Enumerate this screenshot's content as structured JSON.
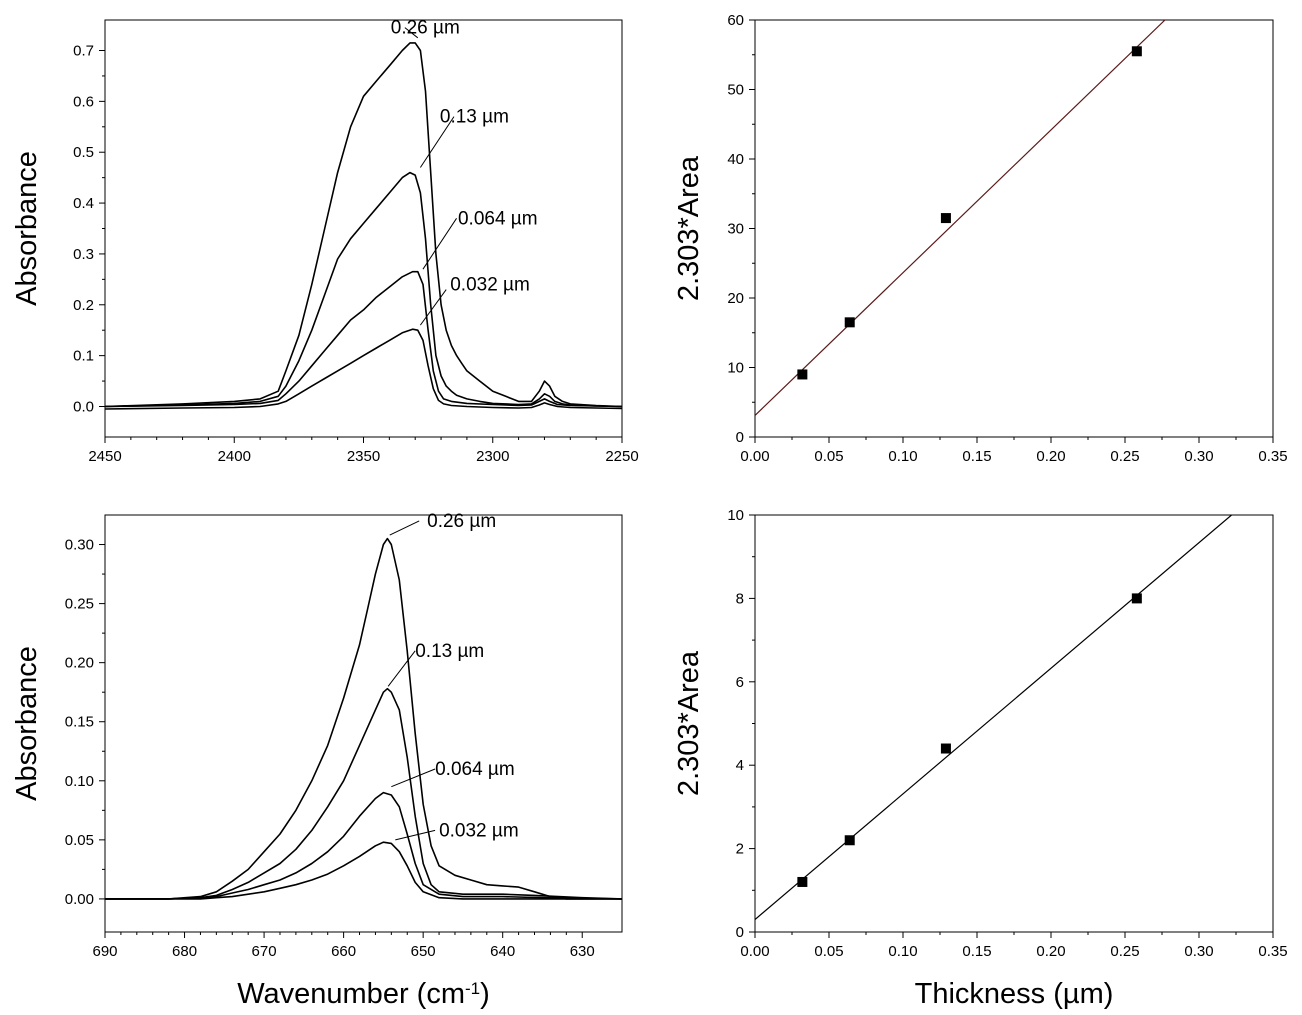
{
  "chart_data": [
    {
      "id": "A",
      "type": "line",
      "ylabel": "Absorbance",
      "xlim": [
        2450,
        2250
      ],
      "ylim": [
        -0.06,
        0.76
      ],
      "xticks": [
        2450,
        2400,
        2350,
        2300,
        2250
      ],
      "xtick_labels": [
        "2450",
        "2400",
        "2350",
        "2300",
        "2250"
      ],
      "yticks": [
        0.0,
        0.1,
        0.2,
        0.3,
        0.4,
        0.5,
        0.6,
        0.7
      ],
      "ytick_labels": [
        "0.0",
        "0.1",
        "0.2",
        "0.3",
        "0.4",
        "0.5",
        "0.6",
        "0.7"
      ],
      "series": [
        {
          "label": "0.26 µm",
          "x": [
            2450,
            2420,
            2400,
            2390,
            2383,
            2380,
            2375,
            2370,
            2365,
            2360,
            2355,
            2350,
            2345,
            2340,
            2335,
            2332,
            2330,
            2328,
            2326,
            2324,
            2322,
            2320,
            2318,
            2316,
            2314,
            2312,
            2310,
            2305,
            2300,
            2295,
            2290,
            2285,
            2282,
            2280,
            2278,
            2276,
            2273,
            2270,
            2260,
            2250
          ],
          "y": [
            0.0,
            0.005,
            0.01,
            0.015,
            0.03,
            0.07,
            0.14,
            0.24,
            0.35,
            0.46,
            0.55,
            0.61,
            0.64,
            0.67,
            0.7,
            0.715,
            0.715,
            0.7,
            0.62,
            0.46,
            0.3,
            0.2,
            0.15,
            0.12,
            0.1,
            0.085,
            0.07,
            0.05,
            0.03,
            0.02,
            0.01,
            0.01,
            0.03,
            0.05,
            0.04,
            0.02,
            0.01,
            0.005,
            0.002,
            0.0
          ]
        },
        {
          "label": "0.13 µm",
          "x": [
            2450,
            2420,
            2400,
            2390,
            2383,
            2380,
            2375,
            2370,
            2365,
            2360,
            2355,
            2350,
            2345,
            2340,
            2335,
            2332,
            2330,
            2328,
            2326,
            2324,
            2322,
            2320,
            2318,
            2316,
            2314,
            2310,
            2305,
            2300,
            2290,
            2285,
            2282,
            2280,
            2278,
            2276,
            2273,
            2270,
            2260,
            2250
          ],
          "y": [
            0.0,
            0.003,
            0.006,
            0.01,
            0.02,
            0.04,
            0.09,
            0.15,
            0.22,
            0.29,
            0.33,
            0.36,
            0.39,
            0.42,
            0.45,
            0.46,
            0.455,
            0.42,
            0.33,
            0.2,
            0.1,
            0.06,
            0.04,
            0.03,
            0.022,
            0.015,
            0.01,
            0.006,
            0.004,
            0.005,
            0.015,
            0.025,
            0.02,
            0.01,
            0.005,
            0.003,
            0.001,
            0.0
          ]
        },
        {
          "label": "0.064 µm",
          "x": [
            2450,
            2420,
            2400,
            2390,
            2383,
            2380,
            2375,
            2370,
            2365,
            2360,
            2355,
            2350,
            2345,
            2340,
            2335,
            2331,
            2329,
            2327,
            2325,
            2323,
            2321,
            2319,
            2316,
            2310,
            2300,
            2290,
            2285,
            2282,
            2280,
            2278,
            2275,
            2270,
            2260,
            2250
          ],
          "y": [
            0.0,
            0.002,
            0.004,
            0.006,
            0.012,
            0.025,
            0.05,
            0.08,
            0.11,
            0.14,
            0.17,
            0.19,
            0.215,
            0.235,
            0.255,
            0.265,
            0.265,
            0.24,
            0.15,
            0.07,
            0.03,
            0.015,
            0.01,
            0.006,
            0.004,
            0.002,
            0.003,
            0.01,
            0.015,
            0.01,
            0.004,
            0.002,
            0.001,
            0.0
          ]
        },
        {
          "label": "0.032 µm",
          "x": [
            2450,
            2420,
            2400,
            2390,
            2383,
            2380,
            2375,
            2370,
            2365,
            2360,
            2355,
            2350,
            2345,
            2340,
            2335,
            2331,
            2329,
            2327,
            2325,
            2323,
            2321,
            2319,
            2316,
            2310,
            2300,
            2290,
            2285,
            2282,
            2280,
            2278,
            2275,
            2270,
            2260,
            2250
          ],
          "y": [
            -0.005,
            -0.003,
            -0.002,
            0.0,
            0.005,
            0.01,
            0.025,
            0.04,
            0.055,
            0.07,
            0.085,
            0.1,
            0.115,
            0.13,
            0.145,
            0.152,
            0.15,
            0.13,
            0.08,
            0.035,
            0.012,
            0.005,
            0.002,
            0.0,
            -0.002,
            -0.003,
            -0.002,
            0.003,
            0.007,
            0.004,
            0.0,
            -0.002,
            -0.003,
            -0.004
          ]
        }
      ],
      "annotations": [
        {
          "text": "0.26 µm",
          "x": 2341,
          "y": 0.745,
          "lx1": 2329,
          "ly1": 0.725,
          "lx2": 2334,
          "ly2": 0.745
        },
        {
          "text": "0.13 µm",
          "x": 2322,
          "y": 0.57,
          "lx1": 2328,
          "ly1": 0.47,
          "lx2": 2315,
          "ly2": 0.57
        },
        {
          "text": "0.064 µm",
          "x": 2315,
          "y": 0.37,
          "lx1": 2327,
          "ly1": 0.27,
          "lx2": 2314,
          "ly2": 0.37
        },
        {
          "text": "0.032 µm",
          "x": 2318,
          "y": 0.24,
          "lx1": 2328,
          "ly1": 0.16,
          "lx2": 2318,
          "ly2": 0.23
        }
      ]
    },
    {
      "id": "B",
      "type": "line",
      "ylabel": "Absorbance",
      "xlabel": "Wavenumber (cm",
      "xlabel_sup": "-1",
      "xlabel_end": ")",
      "xlim": [
        690,
        625
      ],
      "ylim": [
        -0.028,
        0.325
      ],
      "xticks": [
        690,
        680,
        670,
        660,
        650,
        640,
        630
      ],
      "xtick_labels": [
        "690",
        "680",
        "670",
        "660",
        "650",
        "640",
        "630"
      ],
      "yticks": [
        0.0,
        0.05,
        0.1,
        0.15,
        0.2,
        0.25,
        0.3
      ],
      "ytick_labels": [
        "0.00",
        "0.05",
        "0.10",
        "0.15",
        "0.20",
        "0.25",
        "0.30"
      ],
      "series": [
        {
          "label": "0.26 µm",
          "x": [
            690,
            682,
            678,
            676,
            674,
            672,
            670,
            668,
            666,
            664,
            662,
            660,
            658,
            657,
            656,
            655,
            654.5,
            654,
            653,
            652,
            651,
            650,
            649,
            648,
            646,
            644,
            642,
            640,
            638,
            636,
            634,
            632,
            625
          ],
          "y": [
            0.0,
            0.0,
            0.002,
            0.006,
            0.015,
            0.025,
            0.04,
            0.055,
            0.075,
            0.1,
            0.13,
            0.17,
            0.215,
            0.245,
            0.275,
            0.3,
            0.305,
            0.3,
            0.27,
            0.21,
            0.14,
            0.08,
            0.045,
            0.028,
            0.02,
            0.016,
            0.012,
            0.011,
            0.01,
            0.006,
            0.002,
            0.0,
            0.0
          ]
        },
        {
          "label": "0.13 µm",
          "x": [
            690,
            682,
            678,
            676,
            674,
            672,
            670,
            668,
            666,
            664,
            662,
            660,
            658,
            656,
            655,
            654.5,
            654,
            653,
            652,
            651,
            650,
            649,
            648,
            645,
            640,
            636,
            630,
            625
          ],
          "y": [
            0.0,
            0.0,
            0.001,
            0.003,
            0.008,
            0.014,
            0.022,
            0.03,
            0.042,
            0.058,
            0.078,
            0.1,
            0.13,
            0.16,
            0.175,
            0.178,
            0.175,
            0.16,
            0.12,
            0.07,
            0.03,
            0.012,
            0.006,
            0.004,
            0.004,
            0.003,
            0.001,
            0.0
          ]
        },
        {
          "label": "0.064 µm",
          "x": [
            690,
            682,
            678,
            676,
            674,
            672,
            670,
            668,
            666,
            664,
            662,
            660,
            658,
            656,
            655,
            654,
            653,
            652,
            651,
            650,
            648,
            645,
            640,
            635,
            625
          ],
          "y": [
            0.0,
            0.0,
            0.001,
            0.002,
            0.005,
            0.008,
            0.012,
            0.016,
            0.022,
            0.03,
            0.04,
            0.053,
            0.07,
            0.085,
            0.09,
            0.088,
            0.078,
            0.055,
            0.03,
            0.012,
            0.004,
            0.002,
            0.002,
            0.001,
            0.0
          ]
        },
        {
          "label": "0.032 µm",
          "x": [
            690,
            682,
            678,
            676,
            674,
            672,
            670,
            668,
            666,
            664,
            662,
            660,
            658,
            656,
            655,
            654,
            653,
            652,
            651,
            650,
            648,
            645,
            640,
            635,
            625
          ],
          "y": [
            0.0,
            0.0,
            0.0,
            0.001,
            0.002,
            0.004,
            0.006,
            0.009,
            0.012,
            0.016,
            0.021,
            0.028,
            0.036,
            0.045,
            0.048,
            0.047,
            0.04,
            0.028,
            0.014,
            0.006,
            0.001,
            0.0,
            0.0,
            0.0,
            0.0
          ]
        }
      ],
      "annotations": [
        {
          "text": "0.26 µm",
          "x": 650,
          "y": 0.32,
          "lx1": 654.2,
          "ly1": 0.308,
          "lx2": 650.5,
          "ly2": 0.32
        },
        {
          "text": "0.13 µm",
          "x": 651.5,
          "y": 0.21,
          "lx1": 654.4,
          "ly1": 0.18,
          "lx2": 651,
          "ly2": 0.21
        },
        {
          "text": "0.064 µm",
          "x": 649,
          "y": 0.11,
          "lx1": 654,
          "ly1": 0.095,
          "lx2": 648.5,
          "ly2": 0.11
        },
        {
          "text": "0.032 µm",
          "x": 648.5,
          "y": 0.058,
          "lx1": 653.5,
          "ly1": 0.05,
          "lx2": 648.5,
          "ly2": 0.058
        }
      ]
    },
    {
      "id": "C",
      "type": "scatter",
      "ylabel": "2.303*Area",
      "xlim": [
        0.0,
        0.35
      ],
      "ylim": [
        0,
        60
      ],
      "xticks": [
        0.0,
        0.05,
        0.1,
        0.15,
        0.2,
        0.25,
        0.3,
        0.35
      ],
      "xtick_labels": [
        "0.00",
        "0.05",
        "0.10",
        "0.15",
        "0.20",
        "0.25",
        "0.30",
        "0.35"
      ],
      "yticks": [
        0,
        10,
        20,
        30,
        40,
        50,
        60
      ],
      "ytick_labels": [
        "0",
        "10",
        "20",
        "30",
        "40",
        "50",
        "60"
      ],
      "points": {
        "x": [
          0.032,
          0.064,
          0.129,
          0.258
        ],
        "y": [
          9.0,
          16.5,
          31.5,
          55.5
        ]
      },
      "fit": {
        "x": [
          0.0,
          0.277
        ],
        "y": [
          3.1,
          60.0
        ]
      },
      "fit_color": "#5a1a1a"
    },
    {
      "id": "D",
      "type": "scatter",
      "ylabel": "2.303*Area",
      "xlabel": "Thickness (µm)",
      "xlim": [
        0.0,
        0.35
      ],
      "ylim": [
        0,
        10
      ],
      "xticks": [
        0.0,
        0.05,
        0.1,
        0.15,
        0.2,
        0.25,
        0.3,
        0.35
      ],
      "xtick_labels": [
        "0.00",
        "0.05",
        "0.10",
        "0.15",
        "0.20",
        "0.25",
        "0.30",
        "0.35"
      ],
      "yticks": [
        0,
        2,
        4,
        6,
        8,
        10
      ],
      "ytick_labels": [
        "0",
        "2",
        "4",
        "6",
        "8",
        "10"
      ],
      "points": {
        "x": [
          0.032,
          0.064,
          0.129,
          0.258
        ],
        "y": [
          1.2,
          2.2,
          4.4,
          8.0
        ]
      },
      "fit": {
        "x": [
          0.0,
          0.322
        ],
        "y": [
          0.3,
          10.0
        ]
      },
      "fit_color": "#000000"
    }
  ]
}
